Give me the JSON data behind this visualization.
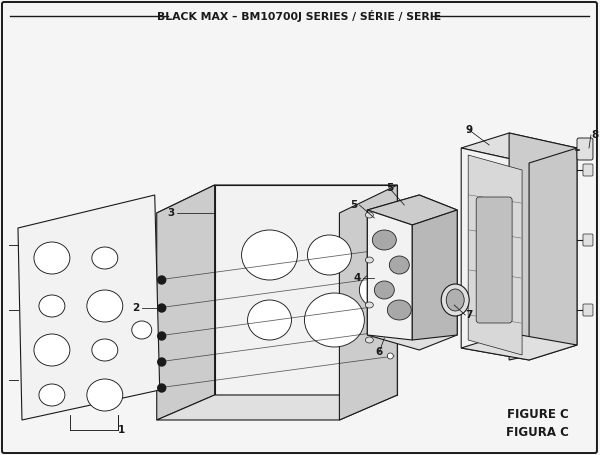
{
  "title": "BLACK MAX – BM10700J SERIES / SÉRIE / SERIE",
  "figure_label": "FIGURE C",
  "figure_label2": "FIGURA C",
  "bg_color": "#f5f5f5",
  "lc": "#1a1a1a",
  "lw": 0.8,
  "border_lw": 1.4,
  "title_fontsize": 7.8,
  "label_fontsize": 7.5,
  "figc_fontsize": 8.5
}
